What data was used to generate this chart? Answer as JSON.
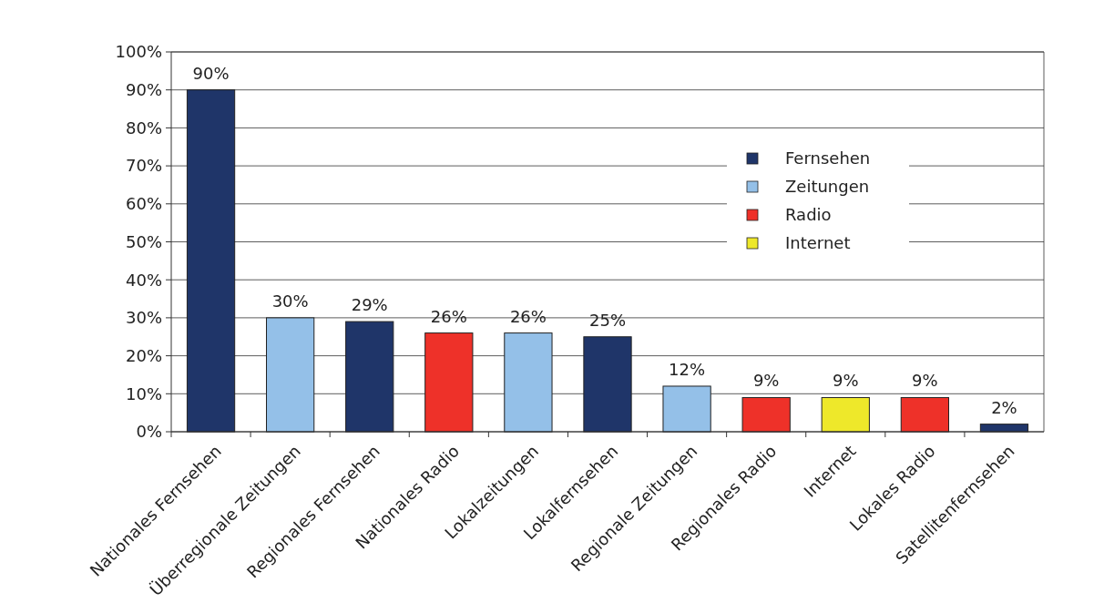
{
  "chart_data": {
    "type": "bar",
    "stacked": true,
    "categories": [
      "Nationales Fernsehen",
      "Überregionale Zeitungen",
      "Regionales Fernsehen",
      "Nationales Radio",
      "Lokalzeitungen",
      "Lokalfernsehen",
      "Regionale Zeitungen",
      "Regionales Radio",
      "Internet",
      "Lokales Radio",
      "Satellitenfernsehen"
    ],
    "series": [
      {
        "name": "Fernsehen",
        "color": "#1f3569",
        "values": [
          90,
          null,
          29,
          null,
          null,
          25,
          null,
          null,
          null,
          null,
          2
        ],
        "value_labels": [
          "90%",
          null,
          "29%",
          null,
          null,
          "25%",
          null,
          null,
          null,
          null,
          "2%"
        ]
      },
      {
        "name": "Zeitungen",
        "color": "#94c0e8",
        "values": [
          null,
          30,
          null,
          null,
          26,
          null,
          12,
          null,
          null,
          null,
          null
        ],
        "value_labels": [
          null,
          "30%",
          null,
          null,
          "26%",
          null,
          "12%",
          null,
          null,
          null,
          null
        ]
      },
      {
        "name": "Radio",
        "color": "#ee3129",
        "values": [
          null,
          null,
          null,
          26,
          null,
          null,
          null,
          9,
          null,
          9,
          null
        ],
        "value_labels": [
          null,
          null,
          null,
          "26%",
          null,
          null,
          null,
          "9%",
          null,
          "9%",
          null
        ]
      },
      {
        "name": "Internet",
        "color": "#eee82a",
        "values": [
          null,
          null,
          null,
          null,
          null,
          null,
          null,
          null,
          9,
          null,
          null
        ],
        "value_labels": [
          null,
          null,
          null,
          null,
          null,
          null,
          null,
          null,
          "9%",
          null,
          null
        ]
      }
    ],
    "ylim": [
      0,
      100
    ],
    "yticks": [
      {
        "value": 0,
        "label": "0%"
      },
      {
        "value": 10,
        "label": "10%"
      },
      {
        "value": 20,
        "label": "20%"
      },
      {
        "value": 30,
        "label": "30%"
      },
      {
        "value": 40,
        "label": "40%"
      },
      {
        "value": 50,
        "label": "50%"
      },
      {
        "value": 60,
        "label": "60%"
      },
      {
        "value": 70,
        "label": "70%"
      },
      {
        "value": 80,
        "label": "80%"
      },
      {
        "value": 90,
        "label": "90%"
      },
      {
        "value": 100,
        "label": "100%"
      }
    ],
    "grid": "y",
    "legend": "right"
  }
}
